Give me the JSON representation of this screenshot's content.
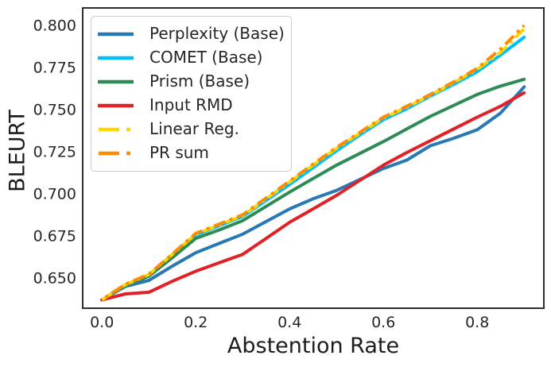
{
  "figure": {
    "background_color": "#ffffff",
    "text_color": "#262626",
    "spine_color": "#2e2e2e"
  },
  "chart_data": {
    "type": "line",
    "title": "",
    "xlabel": "Abstention Rate",
    "ylabel": "BLEURT",
    "grid": false,
    "legend_position": "upper left",
    "xlim": [
      -0.041,
      0.942
    ],
    "ylim": [
      0.632,
      0.8104
    ],
    "xticks": [
      0.0,
      0.2,
      0.4,
      0.6,
      0.8
    ],
    "xticklabels": [
      "0.0",
      "0.2",
      "0.4",
      "0.6",
      "0.8"
    ],
    "yticks": [
      0.65,
      0.675,
      0.7,
      0.725,
      0.75,
      0.775,
      0.8
    ],
    "yticklabels": [
      "0.650",
      "0.675",
      "0.700",
      "0.725",
      "0.750",
      "0.775",
      "0.800"
    ],
    "x": [
      0.0,
      0.05,
      0.1,
      0.15,
      0.2,
      0.25,
      0.3,
      0.35,
      0.4,
      0.45,
      0.5,
      0.55,
      0.6,
      0.65,
      0.7,
      0.75,
      0.8,
      0.85,
      0.9
    ],
    "series": [
      {
        "name": "Perplexity (Base)",
        "color": "#2878b4",
        "style": "solid",
        "values": [
          0.637,
          0.645,
          0.6485,
          0.657,
          0.665,
          0.6705,
          0.676,
          0.6835,
          0.691,
          0.697,
          0.702,
          0.7085,
          0.715,
          0.72,
          0.7285,
          0.733,
          0.738,
          0.748,
          0.7635
        ]
      },
      {
        "name": "COMET (Base)",
        "color": "#00bfff",
        "style": "solid",
        "values": [
          0.637,
          0.646,
          0.6515,
          0.6635,
          0.6755,
          0.681,
          0.6865,
          0.696,
          0.7055,
          0.7155,
          0.7255,
          0.735,
          0.744,
          0.7505,
          0.758,
          0.765,
          0.7725,
          0.7825,
          0.793
        ]
      },
      {
        "name": "Prism (Base)",
        "color": "#2e8b57",
        "style": "solid",
        "values": [
          0.637,
          0.6455,
          0.651,
          0.662,
          0.6735,
          0.6785,
          0.684,
          0.6925,
          0.701,
          0.709,
          0.717,
          0.724,
          0.731,
          0.7385,
          0.746,
          0.7525,
          0.759,
          0.764,
          0.768
        ]
      },
      {
        "name": "Input RMD",
        "color": "#e02126",
        "style": "solid",
        "values": [
          0.637,
          0.6405,
          0.6415,
          0.648,
          0.654,
          0.659,
          0.664,
          0.6735,
          0.683,
          0.691,
          0.699,
          0.708,
          0.717,
          0.7245,
          0.7315,
          0.7385,
          0.7455,
          0.752,
          0.76
        ]
      },
      {
        "name": "Linear Reg.",
        "color": "#ffd700",
        "style": "dashdot",
        "values": [
          0.637,
          0.646,
          0.652,
          0.664,
          0.676,
          0.6815,
          0.687,
          0.697,
          0.707,
          0.717,
          0.727,
          0.736,
          0.745,
          0.7515,
          0.7585,
          0.766,
          0.774,
          0.784,
          0.798
        ]
      },
      {
        "name": "PR sum",
        "color": "#ff8c00",
        "style": "dashdot",
        "values": [
          0.637,
          0.6462,
          0.6522,
          0.6642,
          0.6765,
          0.682,
          0.6875,
          0.6975,
          0.7075,
          0.7175,
          0.7275,
          0.7365,
          0.7455,
          0.752,
          0.759,
          0.7665,
          0.7745,
          0.786,
          0.8
        ]
      }
    ]
  }
}
